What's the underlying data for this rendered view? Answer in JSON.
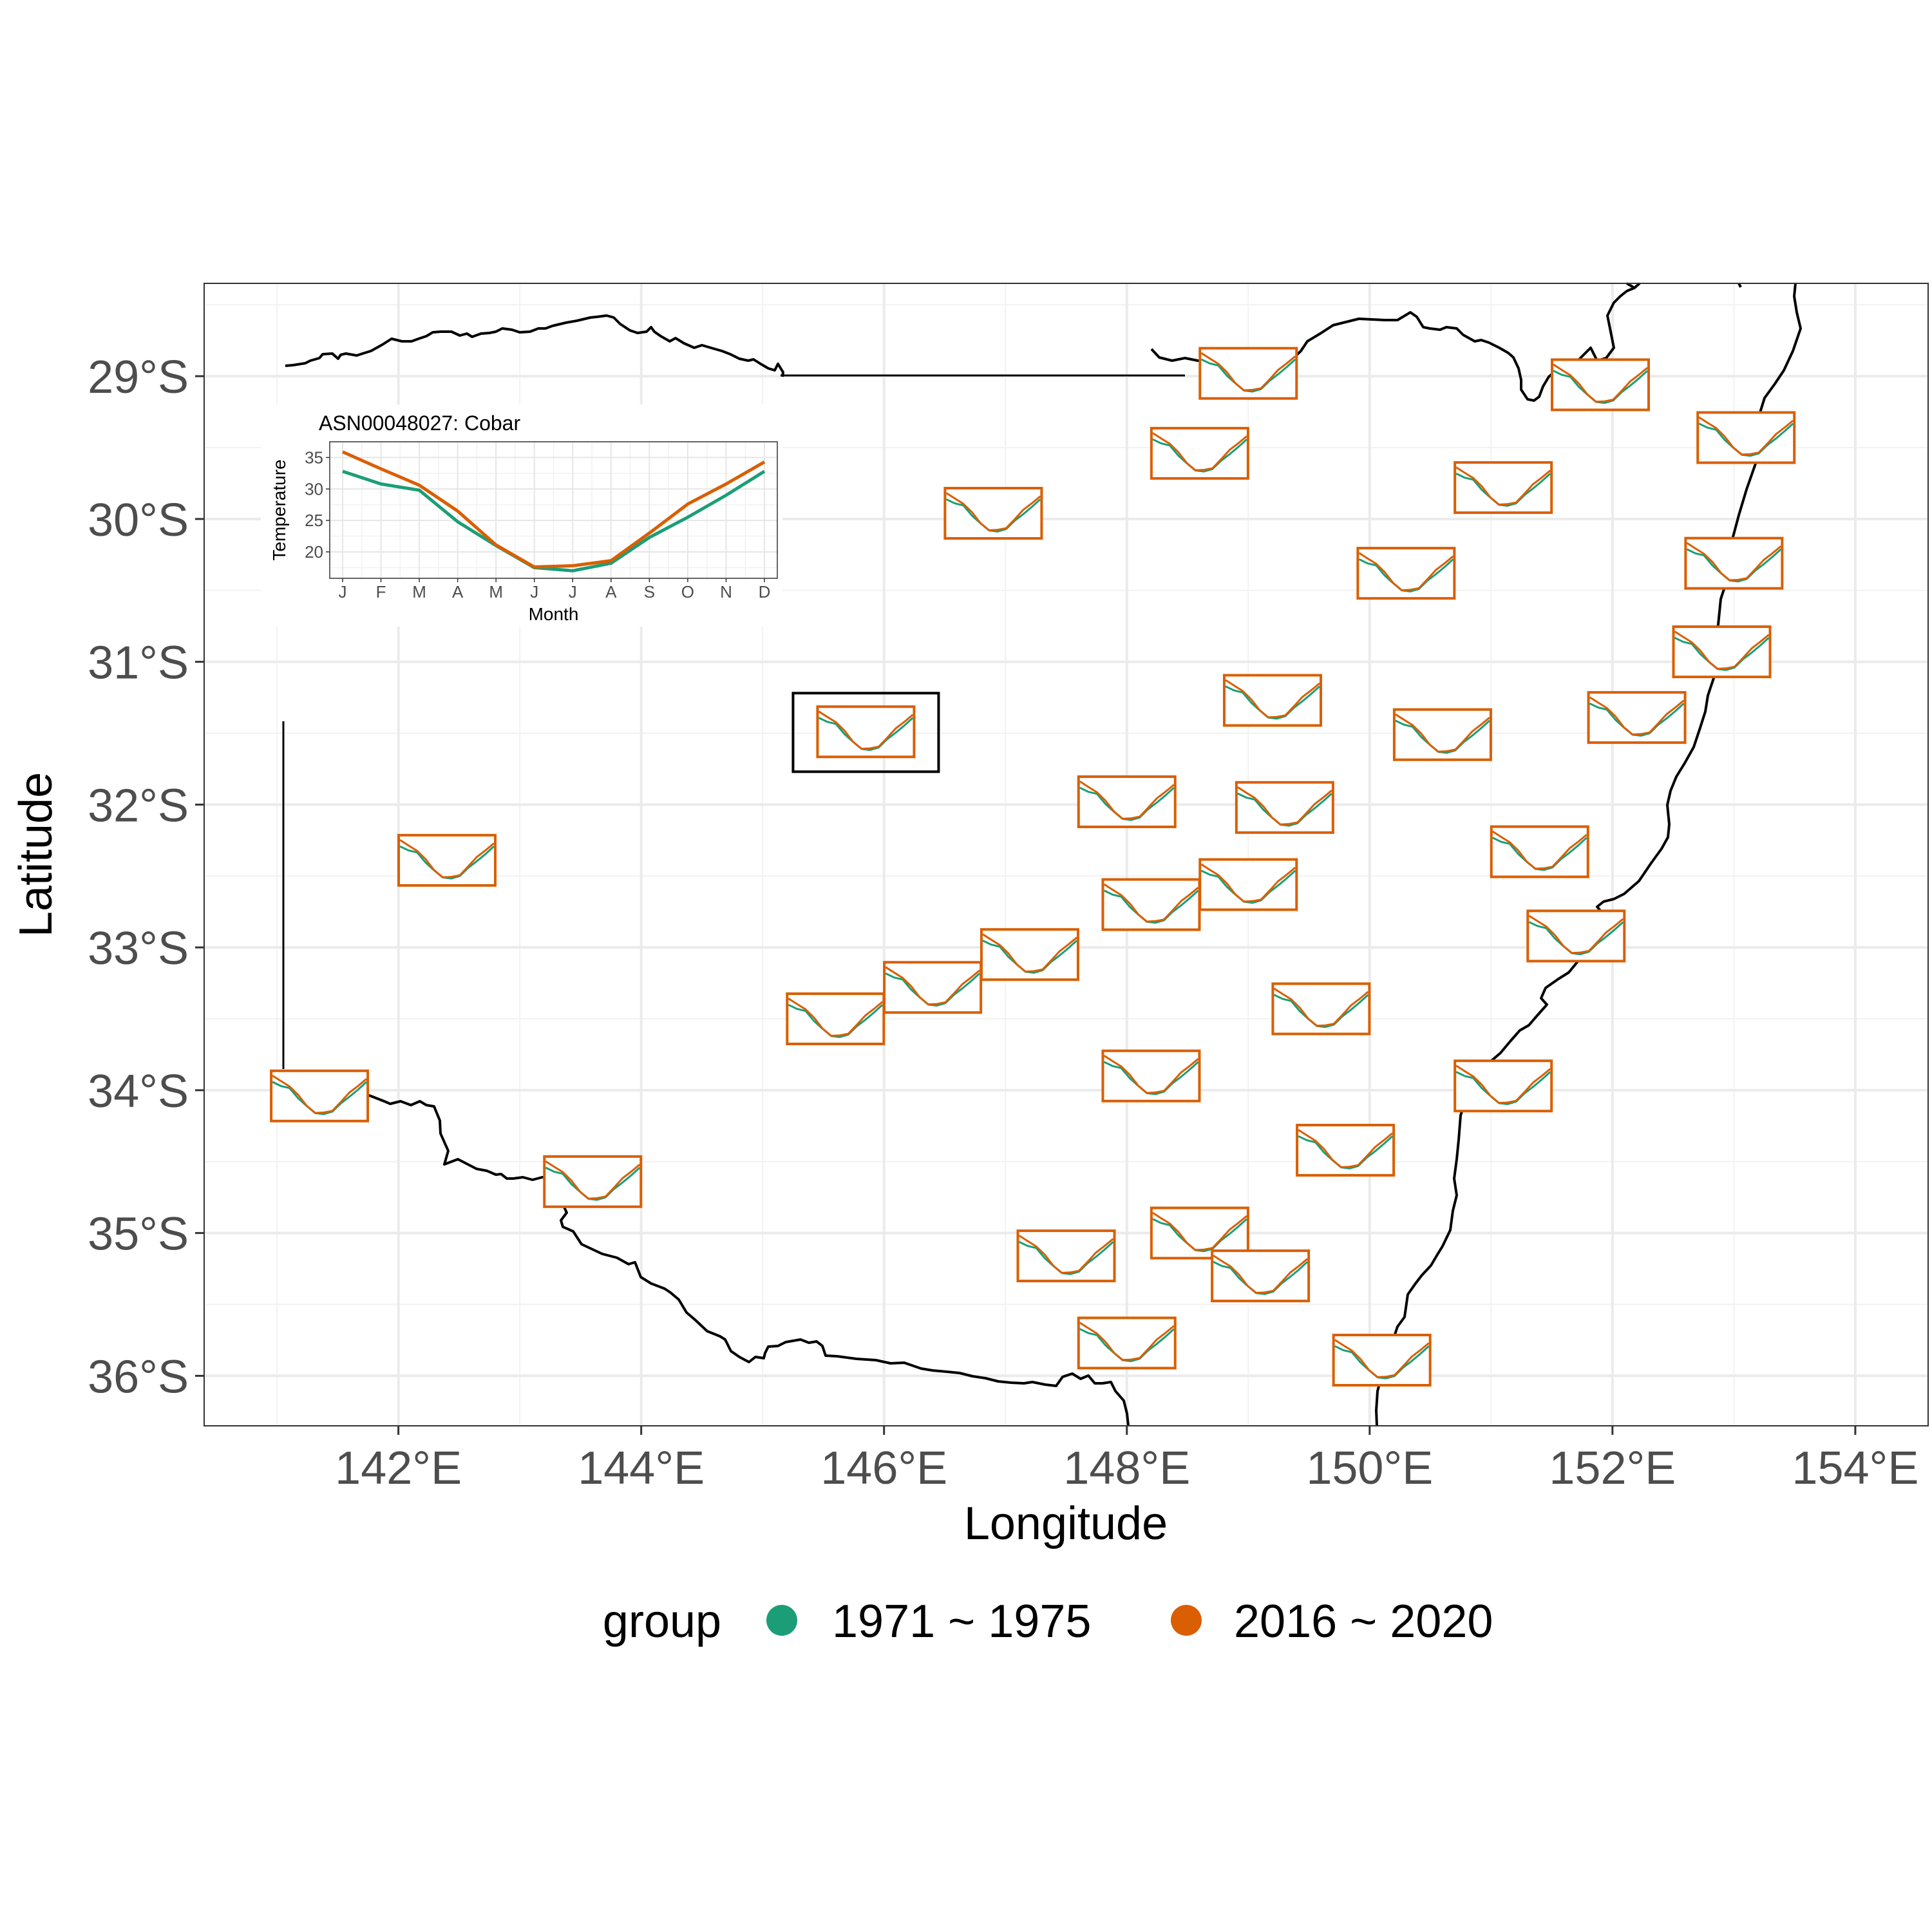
{
  "chart_data": {
    "type": "line",
    "xlabel": "Longitude",
    "ylabel": "Latitude",
    "xlim": [
      140.4,
      154.6
    ],
    "ylim": [
      -36.35,
      -28.35
    ],
    "x_ticks": [
      142,
      144,
      146,
      148,
      150,
      152,
      154
    ],
    "x_tick_labels": [
      "142°E",
      "144°E",
      "146°E",
      "148°E",
      "150°E",
      "152°E",
      "154°E"
    ],
    "y_ticks": [
      -29,
      -30,
      -31,
      -32,
      -33,
      -34,
      -35,
      -36
    ],
    "y_tick_labels": [
      "29°S",
      "30°S",
      "31°S",
      "32°S",
      "33°S",
      "34°S",
      "35°S",
      "36°S"
    ],
    "grid": true,
    "legend": {
      "title": "group",
      "position": "bottom",
      "entries": [
        {
          "label": "1971 ~ 1975",
          "color": "#1B9E77"
        },
        {
          "label": "2016 ~ 2020",
          "color": "#D95F02"
        }
      ]
    },
    "series_colors": {
      "early": "#1B9E77",
      "late": "#D95F02"
    },
    "stations": [
      {
        "lon": 149.0,
        "lat": -28.98
      },
      {
        "lon": 148.6,
        "lat": -29.54
      },
      {
        "lon": 151.9,
        "lat": -29.06
      },
      {
        "lon": 153.1,
        "lat": -29.43
      },
      {
        "lon": 146.9,
        "lat": -29.96
      },
      {
        "lon": 151.1,
        "lat": -29.78
      },
      {
        "lon": 150.3,
        "lat": -30.38
      },
      {
        "lon": 153.0,
        "lat": -30.31
      },
      {
        "lon": 152.9,
        "lat": -30.93
      },
      {
        "lon": 149.2,
        "lat": -31.27
      },
      {
        "lon": 145.85,
        "lat": -31.49
      },
      {
        "lon": 150.6,
        "lat": -31.51
      },
      {
        "lon": 152.2,
        "lat": -31.39
      },
      {
        "lon": 148.0,
        "lat": -31.98
      },
      {
        "lon": 149.3,
        "lat": -32.02
      },
      {
        "lon": 142.4,
        "lat": -32.39
      },
      {
        "lon": 151.4,
        "lat": -32.33
      },
      {
        "lon": 149.0,
        "lat": -32.56
      },
      {
        "lon": 148.2,
        "lat": -32.7
      },
      {
        "lon": 147.2,
        "lat": -33.05
      },
      {
        "lon": 146.4,
        "lat": -33.28
      },
      {
        "lon": 151.7,
        "lat": -32.92
      },
      {
        "lon": 145.6,
        "lat": -33.5
      },
      {
        "lon": 149.6,
        "lat": -33.43
      },
      {
        "lon": 141.35,
        "lat": -34.04
      },
      {
        "lon": 148.2,
        "lat": -33.9
      },
      {
        "lon": 151.1,
        "lat": -33.97
      },
      {
        "lon": 143.6,
        "lat": -34.64
      },
      {
        "lon": 149.8,
        "lat": -34.42
      },
      {
        "lon": 148.6,
        "lat": -35.0
      },
      {
        "lon": 147.5,
        "lat": -35.16
      },
      {
        "lon": 149.1,
        "lat": -35.3
      },
      {
        "lon": 148.0,
        "lat": -35.77
      },
      {
        "lon": 150.1,
        "lat": -35.89
      }
    ],
    "highlighted_station": {
      "lon": 145.85,
      "lat": -31.49
    },
    "inset": {
      "title": "ASN00048027: Cobar",
      "xlabel": "Month",
      "ylabel": "Temperature",
      "months": [
        "J",
        "F",
        "M",
        "A",
        "M",
        "J",
        "J",
        "A",
        "S",
        "O",
        "N",
        "D"
      ],
      "y_ticks": [
        20,
        25,
        30,
        35
      ],
      "ylim": [
        15.8,
        37.5
      ],
      "series": [
        {
          "name": "1971 ~ 1975",
          "color": "#1B9E77",
          "values": [
            32.8,
            30.8,
            29.8,
            24.8,
            21.0,
            17.5,
            17.0,
            18.2,
            22.3,
            25.5,
            29.0,
            32.8
          ]
        },
        {
          "name": "2016 ~ 2020",
          "color": "#D95F02",
          "values": [
            35.9,
            33.2,
            30.6,
            26.5,
            21.1,
            17.6,
            17.8,
            18.6,
            23.0,
            27.6,
            30.8,
            34.3
          ]
        }
      ]
    }
  }
}
